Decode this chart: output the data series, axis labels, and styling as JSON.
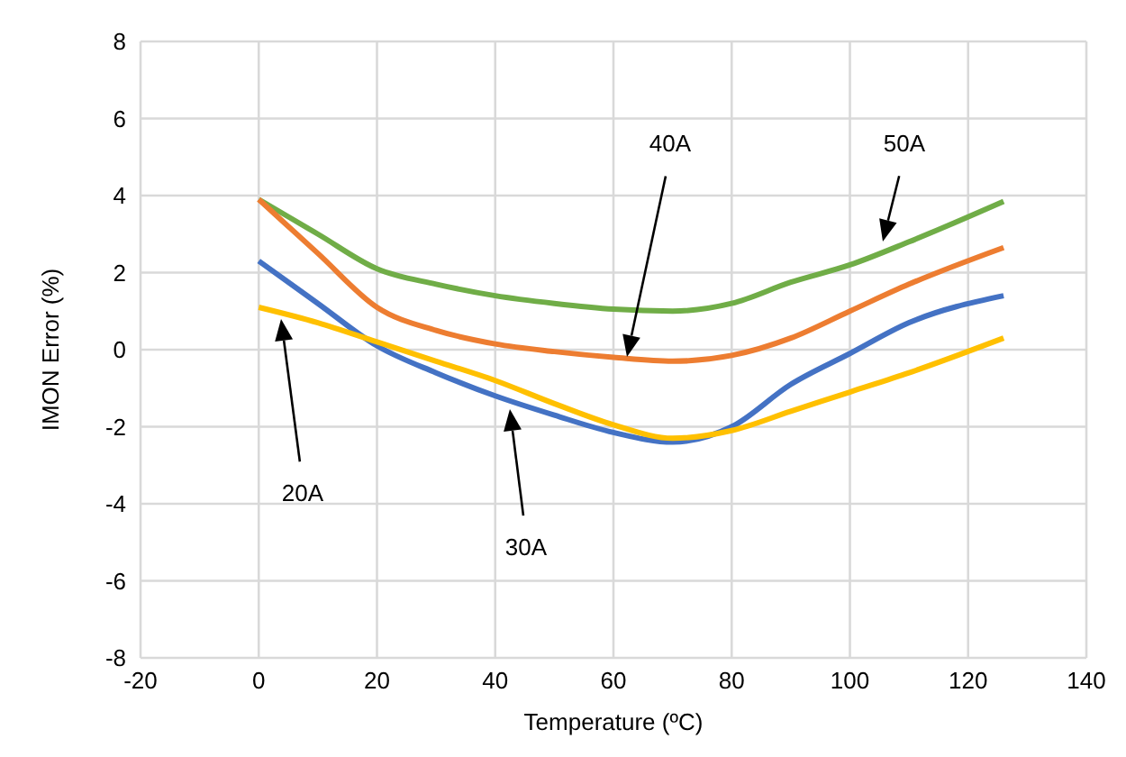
{
  "chart_data": {
    "type": "line",
    "xlabel": "Temperature (ºC)",
    "ylabel": "IMON Error (%)",
    "x": [
      0,
      10,
      20,
      30,
      40,
      50,
      60,
      70,
      80,
      90,
      100,
      110,
      126
    ],
    "series": [
      {
        "color": "#70ad47",
        "values": [
          3.9,
          3.0,
          2.1,
          1.7,
          1.4,
          1.2,
          1.05,
          1.0,
          1.2,
          1.75,
          2.2,
          2.8,
          3.85
        ]
      },
      {
        "color": "#ed7d31",
        "values": [
          3.9,
          2.5,
          1.1,
          0.5,
          0.15,
          -0.05,
          -0.2,
          -0.3,
          -0.15,
          0.3,
          1.0,
          1.7,
          2.65
        ]
      },
      {
        "color": "#4472c4",
        "values": [
          2.3,
          1.2,
          0.1,
          -0.6,
          -1.2,
          -1.7,
          -2.15,
          -2.4,
          -2.0,
          -0.9,
          -0.1,
          0.7,
          1.4
        ]
      },
      {
        "color": "#ffc000",
        "values": [
          1.1,
          0.7,
          0.2,
          -0.3,
          -0.8,
          -1.4,
          -1.95,
          -2.3,
          -2.1,
          -1.6,
          -1.1,
          -0.6,
          0.3
        ]
      }
    ],
    "xlim": [
      -20,
      140
    ],
    "xticks": [
      -20,
      0,
      20,
      40,
      60,
      80,
      100,
      120,
      140
    ],
    "ylim": [
      -8,
      8
    ],
    "yticks": [
      -8,
      -6,
      -4,
      -2,
      0,
      2,
      4,
      6,
      8
    ],
    "grid": true,
    "legend": false,
    "marker": "none",
    "line_style": "solid",
    "annotations": [
      "20A",
      "30A",
      "40A",
      "50A"
    ]
  }
}
